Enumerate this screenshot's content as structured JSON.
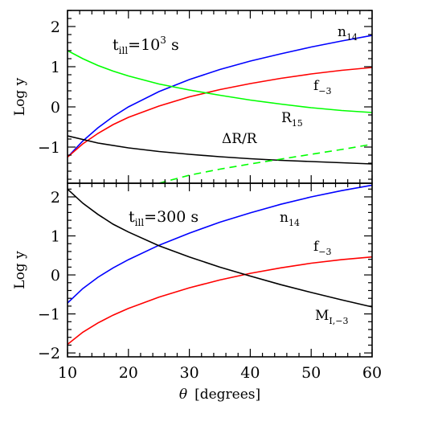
{
  "chart_data": [
    {
      "type": "line",
      "panel": "top",
      "annotation": {
        "prefix": "t",
        "sub": "ill",
        "mid": "=10",
        "sup": "3",
        "suffix": " s"
      },
      "ylabel": "Log y",
      "xlim": [
        10,
        60
      ],
      "ylim": [
        -1.9,
        2.4
      ],
      "x_ticks": [
        10,
        20,
        30,
        40,
        50,
        60
      ],
      "y_ticks": [
        -1,
        0,
        1,
        2
      ],
      "y_tick_labels": [
        "−1",
        "0",
        "1",
        "2"
      ],
      "series": [
        {
          "name_main": "n",
          "name_sub": "14",
          "color": "#0000ff",
          "dash": "solid",
          "x": [
            10,
            12.5,
            15,
            17.5,
            20,
            25,
            30,
            35,
            40,
            45,
            50,
            55,
            60
          ],
          "y": [
            -1.25,
            -0.85,
            -0.52,
            -0.24,
            0.0,
            0.38,
            0.68,
            0.93,
            1.14,
            1.32,
            1.49,
            1.64,
            1.78
          ]
        },
        {
          "name_main": "f",
          "name_sub": "−3",
          "color": "#ff0000",
          "dash": "solid",
          "x": [
            10,
            12.5,
            15,
            17.5,
            20,
            25,
            30,
            35,
            40,
            45,
            50,
            55,
            60
          ],
          "y": [
            -1.25,
            -0.92,
            -0.66,
            -0.44,
            -0.26,
            0.02,
            0.25,
            0.43,
            0.58,
            0.71,
            0.82,
            0.91,
            0.98
          ]
        },
        {
          "name_main": "R",
          "name_sub": "15",
          "color": "#00ff00",
          "dash": "solid",
          "x": [
            10,
            12.5,
            15,
            17.5,
            20,
            25,
            30,
            35,
            40,
            45,
            50,
            55,
            60
          ],
          "y": [
            1.4,
            1.2,
            1.03,
            0.89,
            0.77,
            0.57,
            0.42,
            0.29,
            0.17,
            0.07,
            -0.02,
            -0.09,
            -0.14
          ]
        },
        {
          "name_main": "ΔR/R",
          "name_sub": "",
          "color": "#000000",
          "dash": "solid",
          "x": [
            10,
            15,
            20,
            25,
            30,
            35,
            40,
            45,
            50,
            55,
            60
          ],
          "y": [
            -0.72,
            -0.9,
            -1.02,
            -1.11,
            -1.18,
            -1.24,
            -1.29,
            -1.33,
            -1.36,
            -1.39,
            -1.42
          ]
        },
        {
          "name_main": "",
          "name_sub": "",
          "color": "#00ff00",
          "dash": "dashed",
          "x": [
            25,
            30,
            35,
            40,
            45,
            50,
            55,
            60
          ],
          "y": [
            -1.9,
            -1.7,
            -1.55,
            -1.42,
            -1.3,
            -1.18,
            -1.06,
            -0.93
          ]
        }
      ]
    },
    {
      "type": "line",
      "panel": "bottom",
      "annotation": {
        "prefix": "t",
        "sub": "ill",
        "mid": "=300",
        "sup": "",
        "suffix": " s"
      },
      "ylabel": "Log y",
      "xlabel_symbol": "θ",
      "xlabel": "[degrees]",
      "xlim": [
        10,
        60
      ],
      "ylim": [
        -2.1,
        2.35
      ],
      "x_ticks": [
        10,
        20,
        30,
        40,
        50,
        60
      ],
      "x_tick_labels": [
        "10",
        "20",
        "30",
        "40",
        "50",
        "60"
      ],
      "y_ticks": [
        -2,
        -1,
        0,
        1,
        2
      ],
      "y_tick_labels": [
        "−2",
        "−1",
        "0",
        "1",
        "2"
      ],
      "series": [
        {
          "name_main": "n",
          "name_sub": "14",
          "color": "#0000ff",
          "dash": "solid",
          "x": [
            10,
            12.5,
            15,
            17.5,
            20,
            25,
            30,
            35,
            40,
            45,
            50,
            55,
            60
          ],
          "y": [
            -0.72,
            -0.35,
            -0.06,
            0.18,
            0.39,
            0.76,
            1.07,
            1.35,
            1.59,
            1.81,
            2.0,
            2.16,
            2.3
          ]
        },
        {
          "name_main": "f",
          "name_sub": "−3",
          "color": "#ff0000",
          "dash": "solid",
          "x": [
            10,
            12.5,
            15,
            17.5,
            20,
            25,
            30,
            35,
            40,
            45,
            50,
            55,
            60
          ],
          "y": [
            -1.78,
            -1.47,
            -1.23,
            -1.03,
            -0.86,
            -0.57,
            -0.33,
            -0.13,
            0.04,
            0.18,
            0.3,
            0.39,
            0.46
          ]
        },
        {
          "name_main": "M",
          "name_sub": "I,−3",
          "color": "#000000",
          "dash": "solid",
          "x": [
            10,
            12.5,
            15,
            17.5,
            20,
            25,
            30,
            35,
            40,
            45,
            50,
            55,
            60
          ],
          "y": [
            2.2,
            1.84,
            1.55,
            1.3,
            1.1,
            0.75,
            0.46,
            0.2,
            -0.03,
            -0.25,
            -0.45,
            -0.64,
            -0.82
          ]
        }
      ]
    }
  ]
}
